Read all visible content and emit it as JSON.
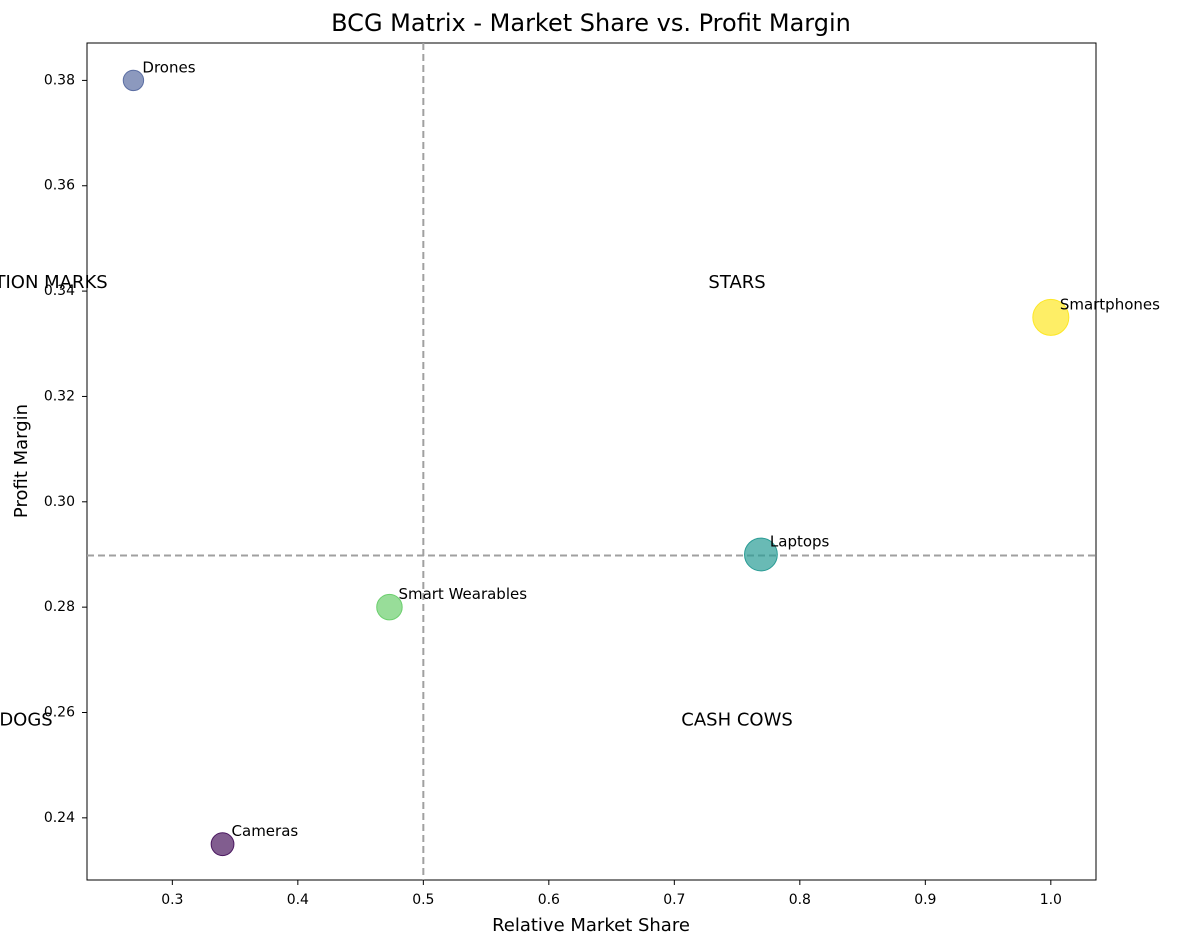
{
  "chart_data": {
    "type": "scatter",
    "title": "BCG Matrix - Market Share vs. Profit Margin",
    "xlabel": "Relative Market Share",
    "ylabel": "Profit Margin",
    "xlim": [
      0.232,
      1.036
    ],
    "ylim": [
      0.2282,
      0.3871
    ],
    "xticks": [
      0.3,
      0.4,
      0.5,
      0.6,
      0.7,
      0.8,
      0.9,
      1.0
    ],
    "xtick_labels": [
      "0.3",
      "0.4",
      "0.5",
      "0.6",
      "0.7",
      "0.8",
      "0.9",
      "1.0"
    ],
    "yticks": [
      0.24,
      0.26,
      0.28,
      0.3,
      0.32,
      0.34,
      0.36,
      0.38
    ],
    "ytick_labels": [
      "0.24",
      "0.26",
      "0.28",
      "0.30",
      "0.32",
      "0.34",
      "0.36",
      "0.38"
    ],
    "grid": false,
    "reference_lines": {
      "vertical_x": 0.5,
      "horizontal_y": 0.2898,
      "style": "dashed",
      "color": "#a0a0a0"
    },
    "quadrants": [
      {
        "label": "QUESTION MARKS",
        "x": 0.1834,
        "y": 0.3415
      },
      {
        "label": "STARS",
        "x": 0.75,
        "y": 0.3415
      },
      {
        "label": "DOGS",
        "x": 0.1834,
        "y": 0.2585
      },
      {
        "label": "CASH COWS",
        "x": 0.75,
        "y": 0.2585
      }
    ],
    "points": [
      {
        "label": "Drones",
        "x": 0.269,
        "y": 0.38,
        "relative_size": 0.32,
        "color": "#5b6ea3"
      },
      {
        "label": "Smartphones",
        "x": 1.0,
        "y": 0.335,
        "relative_size": 1.0,
        "color": "#fde725"
      },
      {
        "label": "Laptops",
        "x": 0.769,
        "y": 0.29,
        "relative_size": 0.83,
        "color": "#2a9c95"
      },
      {
        "label": "Smart Wearables",
        "x": 0.473,
        "y": 0.28,
        "relative_size": 0.5,
        "color": "#6ccf6e"
      },
      {
        "label": "Cameras",
        "x": 0.34,
        "y": 0.235,
        "relative_size": 0.4,
        "color": "#4b1860"
      }
    ],
    "point_opacity": 0.7
  }
}
